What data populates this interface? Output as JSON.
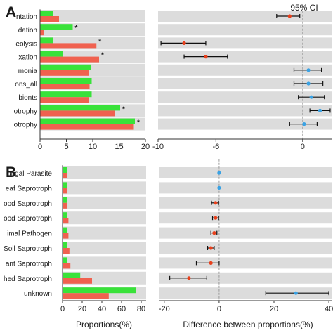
{
  "chart_data": [
    {
      "panel": "A",
      "type": "bar",
      "orientation": "horizontal",
      "categories": [
        "...ntation",
        "...dation",
        "...eolysis",
        "...xation",
        "...monia",
        "...ons_all",
        "...bionts",
        "...otrophy",
        "...otrophy"
      ],
      "series": [
        {
          "color": "#39e23a",
          "values": [
            2.5,
            6.2,
            2.5,
            4.3,
            9.6,
            9.8,
            9.8,
            15.2,
            18.0
          ]
        },
        {
          "color": "#f0614f",
          "values": [
            3.6,
            0.8,
            10.7,
            11.2,
            9.2,
            9.4,
            9.3,
            14.2,
            17.8
          ]
        }
      ],
      "significant": [
        "...dation",
        "...eolysis",
        "...xation",
        "...otrophy"
      ],
      "significance_mark": "*",
      "xlim": [
        0,
        20
      ],
      "xticks": [
        "0",
        "5",
        "10",
        "15",
        "20"
      ],
      "xlabel": ""
    },
    {
      "panel": "A",
      "type": "scatter",
      "title": "95% CI",
      "xlim": [
        -10,
        2
      ],
      "xticks": [
        "-10",
        "-6",
        "0"
      ],
      "xlabel": "",
      "points": [
        {
          "y": 0,
          "x": -0.9,
          "lo": -1.8,
          "hi": -0.2,
          "color": "#e8401c"
        },
        {
          "y": 2,
          "x": -8.2,
          "lo": -9.8,
          "hi": -6.7,
          "color": "#e8401c"
        },
        {
          "y": 3,
          "x": -6.7,
          "lo": -8.2,
          "hi": -5.2,
          "color": "#e8401c"
        },
        {
          "y": 4,
          "x": 0.4,
          "lo": -0.6,
          "hi": 1.3,
          "color": "#3aa2e4"
        },
        {
          "y": 5,
          "x": 0.4,
          "lo": -0.6,
          "hi": 1.4,
          "color": "#3aa2e4"
        },
        {
          "y": 6,
          "x": 0.6,
          "lo": -0.3,
          "hi": 1.5,
          "color": "#3aa2e4"
        },
        {
          "y": 7,
          "x": 1.2,
          "lo": 0.5,
          "hi": 1.9,
          "color": "#3aa2e4"
        },
        {
          "y": 8,
          "x": 0.1,
          "lo": -0.9,
          "hi": 1.0,
          "color": "#3aa2e4"
        }
      ]
    },
    {
      "panel": "B",
      "type": "bar",
      "orientation": "horizontal",
      "categories": [
        "...ungal Parasite",
        "...eaf Saprotroph",
        "...ood Saprotroph",
        "...ood Saprotroph",
        "...imal Pathogen",
        "...Soil Saprotroph",
        "...ant Saprotroph",
        "...hed Saprotroph",
        "unknown"
      ],
      "series": [
        {
          "color": "#39e23a",
          "values": [
            5,
            5,
            5,
            5,
            5,
            5,
            5,
            18,
            75
          ]
        },
        {
          "color": "#f0614f",
          "values": [
            5,
            5,
            5,
            6,
            6,
            7,
            8,
            30,
            47
          ]
        }
      ],
      "xlim": [
        -5,
        85
      ],
      "xticks": [
        "0",
        "20",
        "40",
        "60",
        "80"
      ],
      "xlabel": "Proportions(%)"
    },
    {
      "panel": "B",
      "type": "scatter",
      "xlim": [
        -22,
        41
      ],
      "xticks": [
        "-20",
        "0",
        "20",
        "40"
      ],
      "xlabel": "Difference between proportions(%)",
      "points": [
        {
          "y": 0,
          "x": 0.0,
          "lo": 0.0,
          "hi": 0.0,
          "color": "#3aa2e4"
        },
        {
          "y": 1,
          "x": 0.0,
          "lo": 0.0,
          "hi": 0.0,
          "color": "#3aa2e4"
        },
        {
          "y": 2,
          "x": -1.3,
          "lo": -2.8,
          "hi": -0.2,
          "color": "#e8401c"
        },
        {
          "y": 3,
          "x": -1.3,
          "lo": -2.4,
          "hi": -0.2,
          "color": "#e8401c"
        },
        {
          "y": 4,
          "x": -1.8,
          "lo": -3.0,
          "hi": -0.8,
          "color": "#e8401c"
        },
        {
          "y": 5,
          "x": -3.0,
          "lo": -4.2,
          "hi": -1.8,
          "color": "#e8401c"
        },
        {
          "y": 6,
          "x": -3.0,
          "lo": -8.3,
          "hi": 0.0,
          "color": "#e8401c"
        },
        {
          "y": 7,
          "x": -11.0,
          "lo": -18.0,
          "hi": -4.5,
          "color": "#e8401c"
        },
        {
          "y": 8,
          "x": 28.0,
          "lo": 17.0,
          "hi": 40.0,
          "color": "#3aa2e4"
        }
      ]
    }
  ],
  "panel_labels": {
    "a": "A",
    "b": "B"
  },
  "colors": {
    "band": "#dcdcdc",
    "axis": "#333333",
    "dashed": "#999999"
  }
}
